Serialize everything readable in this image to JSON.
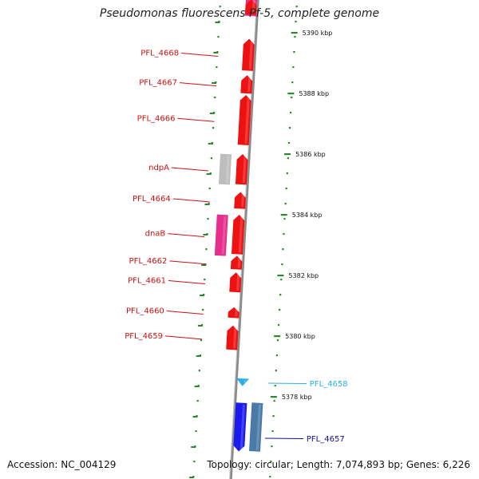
{
  "title": "Pseudomonas fluorescens Pf-5, complete genome",
  "accession": "Accession: NC_004129",
  "summary": "Topology: circular; Length: 7,074,893 bp; Genes: 6,226",
  "colors": {
    "background": "#ffffff",
    "backbone": "#8a8a8a",
    "tick": "#2a8a2a",
    "forward_gene": "#ee1111",
    "pink_gene": "#e62e8c",
    "gray_gene": "#bdbdbd",
    "cyan_gene": "#2ab0e8",
    "blue_gene": "#1a1aee",
    "steel_gene": "#4a7aa8",
    "label_red": "#cc1111",
    "label_cyan": "#2ab0e8",
    "label_blue": "#11119a"
  },
  "scale": {
    "unit": "kbp",
    "marks": [
      {
        "value": 5390,
        "label": "5390 kbp"
      },
      {
        "value": 5388,
        "label": "5388 kbp"
      },
      {
        "value": 5386,
        "label": "5386 kbp"
      },
      {
        "value": 5384,
        "label": "5384 kbp"
      },
      {
        "value": 5382,
        "label": "5382 kbp"
      },
      {
        "value": 5380,
        "label": "5380 kbp"
      },
      {
        "value": 5378,
        "label": "5378 kbp"
      }
    ]
  },
  "genes": [
    {
      "name": "",
      "start": 5390.55,
      "end": 5391.7,
      "strand": "+",
      "track": "forward",
      "color_key": "pink_gene"
    },
    {
      "name": "",
      "start": 5390.6,
      "end": 5391.1,
      "strand": "+",
      "track": "forward",
      "color_key": "forward_gene"
    },
    {
      "name": "PFL_4668",
      "start": 5388.75,
      "end": 5389.8,
      "strand": "+",
      "track": "forward",
      "color_key": "forward_gene",
      "label_color_key": "label_red"
    },
    {
      "name": "PFL_4667",
      "start": 5388.0,
      "end": 5388.6,
      "strand": "+",
      "track": "forward",
      "color_key": "forward_gene",
      "label_color_key": "label_red"
    },
    {
      "name": "PFL_4666",
      "start": 5386.3,
      "end": 5387.95,
      "strand": "+",
      "track": "forward",
      "color_key": "forward_gene",
      "label_color_key": "label_red"
    },
    {
      "name": "ndpA",
      "start": 5385.0,
      "end": 5386.0,
      "strand": "+",
      "track": "inner",
      "color_key": "gray_gene",
      "label_color_key": "label_red"
    },
    {
      "name": "",
      "start": 5385.0,
      "end": 5386.0,
      "strand": "+",
      "track": "forward",
      "color_key": "forward_gene"
    },
    {
      "name": "PFL_4664",
      "start": 5384.2,
      "end": 5384.75,
      "strand": "+",
      "track": "forward",
      "color_key": "forward_gene",
      "label_color_key": "label_red"
    },
    {
      "name": "dnaB",
      "start": 5382.65,
      "end": 5384.0,
      "strand": "+",
      "track": "inner",
      "color_key": "pink_gene",
      "label_color_key": "label_red"
    },
    {
      "name": "",
      "start": 5382.7,
      "end": 5384.0,
      "strand": "+",
      "track": "forward",
      "color_key": "forward_gene"
    },
    {
      "name": "PFL_4662",
      "start": 5382.2,
      "end": 5382.65,
      "strand": "+",
      "track": "forward",
      "color_key": "forward_gene",
      "label_color_key": "label_red"
    },
    {
      "name": "PFL_4661",
      "start": 5381.45,
      "end": 5382.1,
      "strand": "+",
      "track": "forward",
      "color_key": "forward_gene",
      "label_color_key": "label_red"
    },
    {
      "name": "PFL_4660",
      "start": 5380.6,
      "end": 5380.95,
      "strand": "+",
      "track": "forward",
      "color_key": "forward_gene",
      "label_color_key": "label_red"
    },
    {
      "name": "PFL_4659",
      "start": 5379.55,
      "end": 5380.35,
      "strand": "+",
      "track": "forward",
      "color_key": "forward_gene",
      "label_color_key": "label_red"
    },
    {
      "name": "PFL_4658",
      "start": 5378.4,
      "end": 5378.6,
      "strand": "-",
      "track": "reverse",
      "color_key": "cyan_gene",
      "label_color_key": "label_cyan"
    },
    {
      "name": "PFL_4657",
      "start": 5376.2,
      "end": 5377.8,
      "strand": "-",
      "track": "reverse",
      "color_key": "blue_gene",
      "label_color_key": "label_blue"
    },
    {
      "name": "",
      "start": 5376.2,
      "end": 5377.8,
      "strand": "-",
      "track": "reverse_outer",
      "color_key": "steel_gene"
    }
  ]
}
